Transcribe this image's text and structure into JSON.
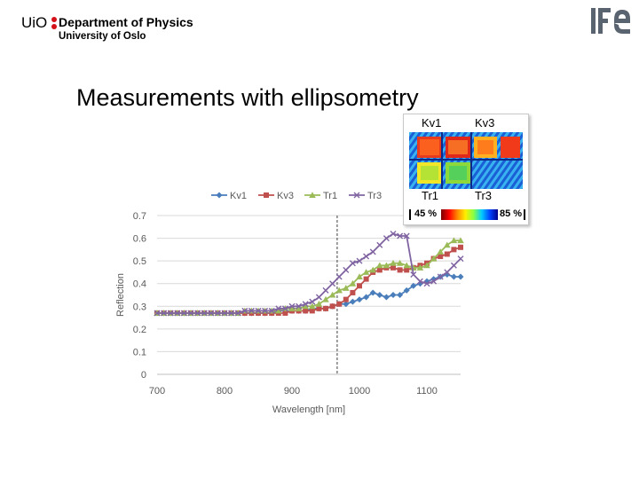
{
  "header": {
    "uio_mark": "UiO",
    "department": "Department of Physics",
    "university": "University of Oslo"
  },
  "title": "Measurements with ellipsometry",
  "inset": {
    "labels_top": [
      "Kv1",
      "Kv3"
    ],
    "labels_bottom": [
      "Tr1",
      "Tr3"
    ],
    "scale_min": "45 %",
    "scale_max": "85 %"
  },
  "colors": {
    "Kv1": "#4a7ebb",
    "Kv3": "#c0504d",
    "Tr1": "#9bbb59",
    "Tr3": "#8064a2"
  },
  "chart_data": {
    "type": "line",
    "title": "",
    "xlabel": "Wavelength [nm]",
    "ylabel": "Reflection",
    "xlim": [
      700,
      1150
    ],
    "ylim": [
      0,
      0.7
    ],
    "xticks": [
      700,
      800,
      900,
      1000,
      1100
    ],
    "yticks": [
      0,
      0.1,
      0.2,
      0.3,
      0.4,
      0.5,
      0.6,
      0.7
    ],
    "vline_x": 967,
    "legend": [
      "Kv1",
      "Kv3",
      "Tr1",
      "Tr3"
    ],
    "x": [
      700,
      710,
      720,
      730,
      740,
      750,
      760,
      770,
      780,
      790,
      800,
      810,
      820,
      830,
      840,
      850,
      860,
      870,
      880,
      890,
      900,
      910,
      920,
      930,
      940,
      950,
      960,
      970,
      980,
      990,
      1000,
      1010,
      1020,
      1030,
      1040,
      1050,
      1060,
      1070,
      1080,
      1090,
      1100,
      1110,
      1120,
      1130,
      1140,
      1150
    ],
    "series": [
      {
        "name": "Kv1",
        "values": [
          0.27,
          0.27,
          0.27,
          0.27,
          0.27,
          0.27,
          0.27,
          0.27,
          0.27,
          0.27,
          0.27,
          0.27,
          0.27,
          0.27,
          0.27,
          0.27,
          0.27,
          0.27,
          0.28,
          0.28,
          0.28,
          0.28,
          0.28,
          0.29,
          0.29,
          0.29,
          0.3,
          0.31,
          0.31,
          0.32,
          0.33,
          0.34,
          0.36,
          0.35,
          0.34,
          0.35,
          0.35,
          0.37,
          0.39,
          0.4,
          0.41,
          0.42,
          0.43,
          0.44,
          0.43,
          0.43
        ]
      },
      {
        "name": "Kv3",
        "values": [
          0.27,
          0.27,
          0.27,
          0.27,
          0.27,
          0.27,
          0.27,
          0.27,
          0.27,
          0.27,
          0.27,
          0.27,
          0.27,
          0.27,
          0.27,
          0.27,
          0.27,
          0.27,
          0.27,
          0.27,
          0.28,
          0.28,
          0.28,
          0.28,
          0.29,
          0.29,
          0.3,
          0.31,
          0.33,
          0.36,
          0.39,
          0.42,
          0.45,
          0.46,
          0.47,
          0.47,
          0.46,
          0.46,
          0.47,
          0.48,
          0.49,
          0.51,
          0.52,
          0.53,
          0.55,
          0.56
        ]
      },
      {
        "name": "Tr1",
        "values": [
          0.27,
          0.27,
          0.27,
          0.27,
          0.27,
          0.27,
          0.27,
          0.27,
          0.27,
          0.27,
          0.27,
          0.27,
          0.27,
          0.28,
          0.28,
          0.28,
          0.28,
          0.28,
          0.28,
          0.29,
          0.29,
          0.29,
          0.3,
          0.3,
          0.31,
          0.33,
          0.35,
          0.37,
          0.38,
          0.4,
          0.43,
          0.45,
          0.46,
          0.48,
          0.48,
          0.49,
          0.49,
          0.48,
          0.47,
          0.47,
          0.48,
          0.51,
          0.54,
          0.57,
          0.59,
          0.59
        ]
      },
      {
        "name": "Tr3",
        "values": [
          0.27,
          0.27,
          0.27,
          0.27,
          0.27,
          0.27,
          0.27,
          0.27,
          0.27,
          0.27,
          0.27,
          0.27,
          0.27,
          0.28,
          0.28,
          0.28,
          0.28,
          0.28,
          0.29,
          0.29,
          0.3,
          0.3,
          0.31,
          0.32,
          0.34,
          0.37,
          0.4,
          0.43,
          0.46,
          0.49,
          0.5,
          0.52,
          0.54,
          0.57,
          0.6,
          0.62,
          0.61,
          0.61,
          0.44,
          0.41,
          0.4,
          0.41,
          0.43,
          0.45,
          0.48,
          0.51
        ]
      }
    ]
  }
}
